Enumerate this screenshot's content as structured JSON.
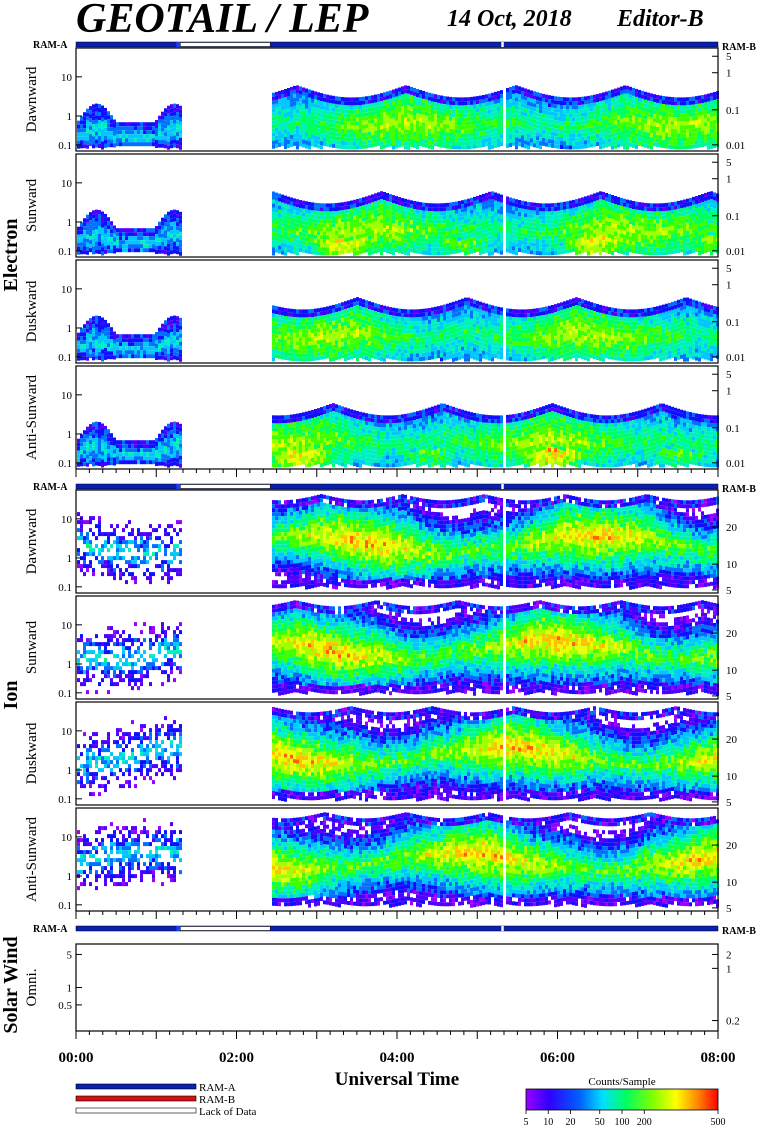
{
  "header": {
    "title": "GEOTAIL / LEP",
    "date": "14 Oct, 2018",
    "editor": "Editor-B"
  },
  "colors": {
    "ram_a": "#0a1fb4",
    "ram_b": "#d81010",
    "lack_of_data": "#ffffff",
    "frame": "#000000"
  },
  "chart_data": {
    "type": "heatmap",
    "xlabel": "Universal Time",
    "x_ticks": [
      "00:00",
      "02:00",
      "04:00",
      "06:00",
      "08:00"
    ],
    "x_range_hours": [
      0,
      8
    ],
    "data_gap_hours": [
      1.3,
      2.42
    ],
    "small_gap_hours": [
      5.3,
      5.33
    ],
    "groups": [
      {
        "name": "Electron",
        "ram_left": "RAM-A",
        "ram_right": "RAM-B",
        "y_ticks_left": [
          "0.1",
          "1",
          "10"
        ],
        "y_ticks_right": [
          "0.01",
          "0.1",
          "1",
          "5"
        ],
        "panels": [
          {
            "label": "Dawnward"
          },
          {
            "label": "Sunward"
          },
          {
            "label": "Duskward"
          },
          {
            "label": "Anti-Sunward"
          }
        ]
      },
      {
        "name": "Ion",
        "ram_left": "RAM-A",
        "ram_right": "RAM-B",
        "y_ticks_left": [
          "0.1",
          "1",
          "10"
        ],
        "y_ticks_right": [
          "5",
          "10",
          "20"
        ],
        "panels": [
          {
            "label": "Dawnward"
          },
          {
            "label": "Sunward"
          },
          {
            "label": "Duskward"
          },
          {
            "label": "Anti-Sunward"
          }
        ]
      },
      {
        "name": "Solar Wind",
        "ram_left": "RAM-A",
        "ram_right": "RAM-B",
        "y_ticks_left": [
          "0.5",
          "1",
          "5"
        ],
        "y_ticks_right": [
          "0.2",
          "1",
          "2"
        ],
        "panels": [
          {
            "label": "Omni."
          }
        ]
      }
    ],
    "legend": [
      {
        "label": "RAM-A",
        "color": "#0a1fb4"
      },
      {
        "label": "RAM-B",
        "color": "#d81010"
      },
      {
        "label": "Lack of Data",
        "color": "#ffffff"
      }
    ],
    "colorbar": {
      "title": "Counts/Sample",
      "ticks": [
        "5",
        "10",
        "20",
        "50",
        "100",
        "200",
        "500"
      ]
    }
  }
}
